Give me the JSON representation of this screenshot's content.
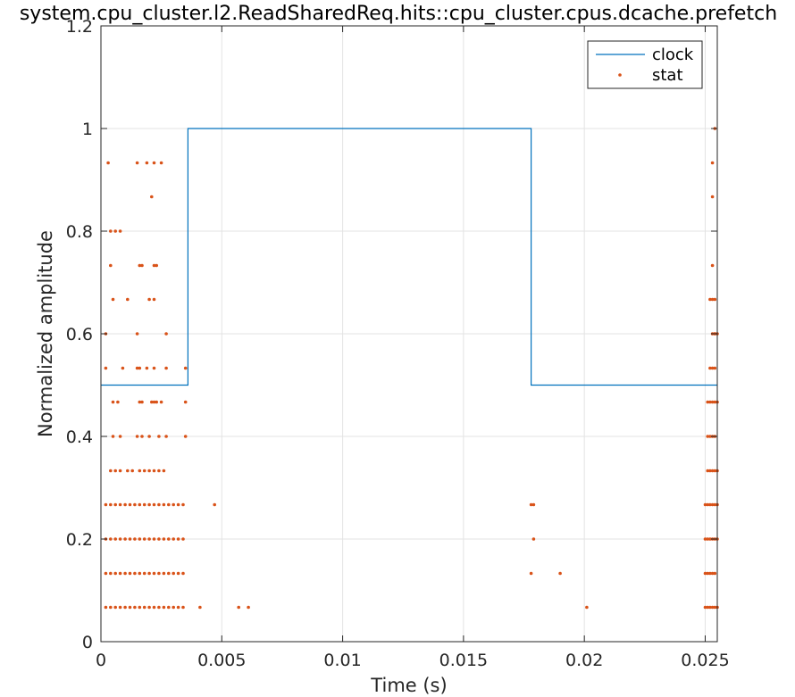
{
  "chart_data": {
    "type": "line",
    "title": "system.cpu_cluster.l2.ReadSharedReq.hits::cpu_cluster.cpus.dcache.prefetch",
    "xlabel": "Time (s)",
    "ylabel": "Normalized amplitude",
    "xlim": [
      0,
      0.0255
    ],
    "ylim": [
      0,
      1.2
    ],
    "xticks": [
      0,
      0.005,
      0.01,
      0.015,
      0.02,
      0.025
    ],
    "xtick_labels": [
      "0",
      "0.005",
      "0.01",
      "0.015",
      "0.02",
      "0.025"
    ],
    "yticks": [
      0,
      0.2,
      0.4,
      0.6,
      0.8,
      1,
      1.2
    ],
    "ytick_labels": [
      "0",
      "0.2",
      "0.4",
      "0.6",
      "0.8",
      "1",
      "1.2"
    ],
    "grid": true,
    "legend_position": "top-right",
    "colors": {
      "clock": "#0072BD",
      "stat": "#D95319"
    },
    "series": [
      {
        "name": "clock",
        "kind": "line",
        "x": [
          0,
          0.0036,
          0.0036,
          0.0178,
          0.0178,
          0.0255
        ],
        "y": [
          0.5,
          0.5,
          1.0,
          1.0,
          0.5,
          0.5
        ]
      },
      {
        "name": "stat",
        "kind": "scatter",
        "x": [
          0.0002,
          0.0004,
          0.0006,
          0.0008,
          0.001,
          0.0012,
          0.0014,
          0.0016,
          0.0018,
          0.002,
          0.0022,
          0.0024,
          0.0026,
          0.0028,
          0.003,
          0.0032,
          0.0034,
          0.0041,
          0.0057,
          0.0061,
          0.0002,
          0.0004,
          0.0006,
          0.0008,
          0.001,
          0.0012,
          0.0014,
          0.0016,
          0.0018,
          0.002,
          0.0022,
          0.0024,
          0.0026,
          0.0028,
          0.003,
          0.0032,
          0.0034,
          0.0002,
          0.0004,
          0.0006,
          0.0008,
          0.001,
          0.0012,
          0.0014,
          0.0016,
          0.0018,
          0.002,
          0.0022,
          0.0024,
          0.0026,
          0.0028,
          0.003,
          0.0032,
          0.0034,
          0.0002,
          0.0004,
          0.0006,
          0.0008,
          0.001,
          0.0012,
          0.0014,
          0.0016,
          0.0018,
          0.002,
          0.0022,
          0.0024,
          0.0026,
          0.0028,
          0.003,
          0.0032,
          0.0034,
          0.0047,
          0.0004,
          0.0006,
          0.0008,
          0.0011,
          0.0013,
          0.0016,
          0.0018,
          0.002,
          0.0022,
          0.0024,
          0.0026,
          0.0005,
          0.0008,
          0.0015,
          0.0017,
          0.002,
          0.0024,
          0.0027,
          0.0035,
          0.0005,
          0.0007,
          0.0016,
          0.0017,
          0.0021,
          0.0022,
          0.0023,
          0.0025,
          0.0035,
          0.0002,
          0.0009,
          0.0015,
          0.0016,
          0.0019,
          0.0022,
          0.0027,
          0.0035,
          0.0002,
          0.0015,
          0.0027,
          0.0005,
          0.0011,
          0.002,
          0.0022,
          0.0004,
          0.0016,
          0.0017,
          0.0022,
          0.0023,
          0.0004,
          0.0006,
          0.0008,
          0.0021,
          0.0003,
          0.0015,
          0.0019,
          0.0022,
          0.0025,
          0.0178,
          0.0179,
          0.0179,
          0.0178,
          0.019,
          0.0201,
          0.025,
          0.0251,
          0.0252,
          0.0253,
          0.0254,
          0.0255,
          0.025,
          0.0251,
          0.0252,
          0.0253,
          0.0254,
          0.025,
          0.0251,
          0.0252,
          0.0253,
          0.0254,
          0.0255,
          0.025,
          0.0251,
          0.0252,
          0.0253,
          0.0254,
          0.0255,
          0.0251,
          0.0252,
          0.0253,
          0.0254,
          0.0255,
          0.0251,
          0.0252,
          0.0253,
          0.0254,
          0.0251,
          0.0252,
          0.0253,
          0.0254,
          0.0255,
          0.0252,
          0.0253,
          0.0254,
          0.0253,
          0.0254,
          0.0255,
          0.0252,
          0.0253,
          0.0254,
          0.0253,
          0.0253,
          0.0253,
          0.0254,
          0.0254
        ],
        "y": [
          0.067,
          0.067,
          0.067,
          0.067,
          0.067,
          0.067,
          0.067,
          0.067,
          0.067,
          0.067,
          0.067,
          0.067,
          0.067,
          0.067,
          0.067,
          0.067,
          0.067,
          0.067,
          0.067,
          0.067,
          0.133,
          0.133,
          0.133,
          0.133,
          0.133,
          0.133,
          0.133,
          0.133,
          0.133,
          0.133,
          0.133,
          0.133,
          0.133,
          0.133,
          0.133,
          0.133,
          0.133,
          0.2,
          0.2,
          0.2,
          0.2,
          0.2,
          0.2,
          0.2,
          0.2,
          0.2,
          0.2,
          0.2,
          0.2,
          0.2,
          0.2,
          0.2,
          0.2,
          0.2,
          0.267,
          0.267,
          0.267,
          0.267,
          0.267,
          0.267,
          0.267,
          0.267,
          0.267,
          0.267,
          0.267,
          0.267,
          0.267,
          0.267,
          0.267,
          0.267,
          0.267,
          0.267,
          0.333,
          0.333,
          0.333,
          0.333,
          0.333,
          0.333,
          0.333,
          0.333,
          0.333,
          0.333,
          0.333,
          0.4,
          0.4,
          0.4,
          0.4,
          0.4,
          0.4,
          0.4,
          0.4,
          0.467,
          0.467,
          0.467,
          0.467,
          0.467,
          0.467,
          0.467,
          0.467,
          0.467,
          0.533,
          0.533,
          0.533,
          0.533,
          0.533,
          0.533,
          0.533,
          0.533,
          0.6,
          0.6,
          0.6,
          0.667,
          0.667,
          0.667,
          0.667,
          0.733,
          0.733,
          0.733,
          0.733,
          0.733,
          0.8,
          0.8,
          0.8,
          0.867,
          0.933,
          0.933,
          0.933,
          0.933,
          0.933,
          0.267,
          0.267,
          0.2,
          0.133,
          0.133,
          0.067,
          0.067,
          0.067,
          0.067,
          0.067,
          0.067,
          0.067,
          0.133,
          0.133,
          0.133,
          0.133,
          0.133,
          0.2,
          0.2,
          0.2,
          0.2,
          0.2,
          0.2,
          0.267,
          0.267,
          0.267,
          0.267,
          0.267,
          0.267,
          0.333,
          0.333,
          0.333,
          0.333,
          0.333,
          0.4,
          0.4,
          0.4,
          0.4,
          0.467,
          0.467,
          0.467,
          0.467,
          0.467,
          0.533,
          0.533,
          0.533,
          0.6,
          0.6,
          0.6,
          0.667,
          0.667,
          0.667,
          0.733,
          0.867,
          0.933,
          1.0,
          0.6
        ]
      }
    ]
  }
}
